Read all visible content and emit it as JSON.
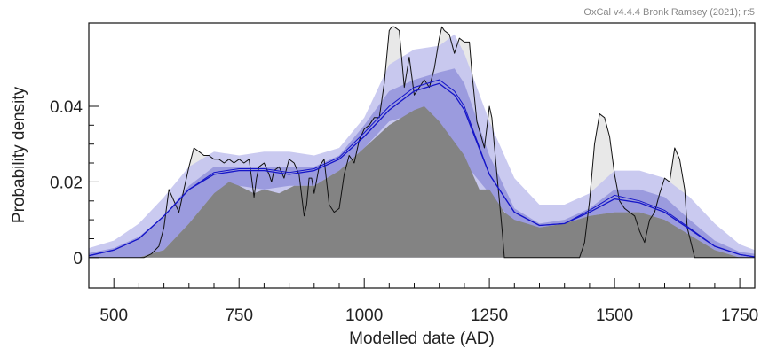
{
  "chart_data": {
    "type": "area",
    "credit": "OxCal v4.4.4 Bronk Ramsey (2021); r:5",
    "xlabel": "Modelled date (AD)",
    "ylabel": "Probability density",
    "xlim": [
      450,
      1780
    ],
    "ylim": [
      -0.008,
      0.062
    ],
    "x_ticks": [
      500,
      750,
      1000,
      1250,
      1500,
      1750
    ],
    "x_minor_step": 50,
    "y_ticks": [
      {
        "value": 0,
        "label": "0"
      },
      {
        "value": 0.02,
        "label": "0.02"
      },
      {
        "value": 0.04,
        "label": "0.04"
      }
    ],
    "y_minor_step": 0.005,
    "colors": {
      "envelope_outer": "#c4c4ee",
      "envelope_inner": "#9696dc",
      "model_fill": "#838383",
      "raw_fill": "#e8e8e8",
      "raw_line": "#111111",
      "mean_line": "#1515c8",
      "axis": "#111111"
    },
    "series": [
      {
        "role": "raw-kde",
        "x": [
          450,
          540,
          560,
          575,
          590,
          600,
          610,
          620,
          630,
          640,
          650,
          660,
          670,
          680,
          690,
          700,
          710,
          720,
          730,
          740,
          750,
          760,
          770,
          775,
          780,
          785,
          790,
          800,
          810,
          815,
          820,
          830,
          840,
          850,
          860,
          870,
          880,
          885,
          890,
          895,
          900,
          910,
          920,
          930,
          940,
          950,
          960,
          970,
          980,
          990,
          1000,
          1010,
          1020,
          1030,
          1040,
          1050,
          1055,
          1060,
          1070,
          1080,
          1090,
          1100,
          1110,
          1120,
          1130,
          1140,
          1150,
          1155,
          1160,
          1170,
          1180,
          1190,
          1200,
          1210,
          1215,
          1225,
          1240,
          1250,
          1255,
          1265,
          1275,
          1280,
          1290,
          1300,
          1400,
          1430,
          1440,
          1450,
          1460,
          1470,
          1480,
          1490,
          1500,
          1510,
          1520,
          1530,
          1540,
          1550,
          1560,
          1570,
          1580,
          1590,
          1600,
          1610,
          1620,
          1630,
          1640,
          1645,
          1660,
          1780
        ],
        "y": [
          0,
          0,
          0,
          0.001,
          0.003,
          0.008,
          0.018,
          0.015,
          0.012,
          0.018,
          0.024,
          0.029,
          0.028,
          0.027,
          0.027,
          0.026,
          0.026,
          0.025,
          0.026,
          0.025,
          0.026,
          0.025,
          0.026,
          0.021,
          0.016,
          0.021,
          0.024,
          0.025,
          0.022,
          0.02,
          0.023,
          0.024,
          0.021,
          0.026,
          0.025,
          0.022,
          0.011,
          0.014,
          0.021,
          0.021,
          0.017,
          0.024,
          0.026,
          0.014,
          0.012,
          0.013,
          0.022,
          0.027,
          0.025,
          0.031,
          0.034,
          0.035,
          0.037,
          0.037,
          0.046,
          0.06,
          0.061,
          0.061,
          0.06,
          0.045,
          0.053,
          0.043,
          0.045,
          0.047,
          0.045,
          0.05,
          0.058,
          0.061,
          0.06,
          0.059,
          0.054,
          0.058,
          0.057,
          0.057,
          0.049,
          0.036,
          0.029,
          0.04,
          0.037,
          0.022,
          0.008,
          0,
          0,
          0,
          0,
          0,
          0.004,
          0.015,
          0.03,
          0.038,
          0.037,
          0.032,
          0.022,
          0.015,
          0.013,
          0.012,
          0.011,
          0.007,
          0.004,
          0.01,
          0.012,
          0.017,
          0.021,
          0.02,
          0.029,
          0.026,
          0.018,
          0.008,
          0,
          0
        ]
      },
      {
        "role": "envelope-outer",
        "x": [
          450,
          500,
          550,
          600,
          650,
          700,
          750,
          800,
          850,
          900,
          950,
          1000,
          1050,
          1100,
          1150,
          1180,
          1200,
          1250,
          1300,
          1350,
          1400,
          1450,
          1500,
          1550,
          1600,
          1650,
          1700,
          1750,
          1780
        ],
        "upper": [
          0.0025,
          0.0045,
          0.009,
          0.016,
          0.024,
          0.028,
          0.027,
          0.028,
          0.028,
          0.027,
          0.029,
          0.037,
          0.051,
          0.055,
          0.056,
          0.059,
          0.054,
          0.036,
          0.021,
          0.014,
          0.014,
          0.017,
          0.023,
          0.023,
          0.021,
          0.016,
          0.009,
          0.0035,
          0.002
        ],
        "lower": [
          0,
          0,
          0,
          0,
          0,
          0,
          0,
          0,
          0,
          0,
          0,
          0,
          0,
          0,
          0,
          0,
          0,
          0,
          0,
          0,
          0,
          0,
          0,
          0,
          0,
          0,
          0,
          0,
          0
        ]
      },
      {
        "role": "envelope-inner",
        "x": [
          450,
          500,
          550,
          600,
          650,
          700,
          750,
          800,
          850,
          900,
          950,
          1000,
          1050,
          1100,
          1150,
          1180,
          1200,
          1250,
          1300,
          1350,
          1400,
          1450,
          1500,
          1550,
          1600,
          1650,
          1700,
          1750,
          1780
        ],
        "upper": [
          0.0012,
          0.0025,
          0.0055,
          0.011,
          0.019,
          0.024,
          0.024,
          0.024,
          0.024,
          0.024,
          0.027,
          0.035,
          0.044,
          0.047,
          0.049,
          0.05,
          0.046,
          0.027,
          0.013,
          0.009,
          0.01,
          0.013,
          0.018,
          0.018,
          0.016,
          0.01,
          0.0045,
          0.0015,
          0.001
        ],
        "lower": [
          0,
          0,
          0,
          0.002,
          0.009,
          0.017,
          0.019,
          0.018,
          0.019,
          0.019,
          0.023,
          0.029,
          0.036,
          0.038,
          0.035,
          0.03,
          0.025,
          0.017,
          0.009,
          0.008,
          0.009,
          0.011,
          0.012,
          0.012,
          0.01,
          0.006,
          0.002,
          0,
          0
        ]
      },
      {
        "role": "model-fill",
        "x": [
          450,
          500,
          550,
          600,
          650,
          700,
          730,
          750,
          780,
          800,
          830,
          860,
          900,
          950,
          1000,
          1050,
          1100,
          1120,
          1150,
          1200,
          1230,
          1250,
          1280,
          1300,
          1350,
          1400,
          1450,
          1500,
          1550,
          1600,
          1650,
          1700,
          1750,
          1780
        ],
        "y": [
          0,
          0,
          0,
          0.002,
          0.009,
          0.017,
          0.02,
          0.019,
          0.017,
          0.018,
          0.017,
          0.019,
          0.019,
          0.023,
          0.029,
          0.035,
          0.039,
          0.04,
          0.036,
          0.027,
          0.018,
          0.018,
          0.012,
          0.01,
          0.008,
          0.009,
          0.011,
          0.012,
          0.012,
          0.01,
          0.006,
          0.002,
          0,
          0
        ]
      },
      {
        "role": "mean-line-a",
        "x": [
          450,
          500,
          550,
          600,
          650,
          700,
          750,
          800,
          850,
          900,
          950,
          1000,
          1050,
          1100,
          1150,
          1180,
          1200,
          1250,
          1300,
          1350,
          1400,
          1450,
          1500,
          1550,
          1600,
          1650,
          1700,
          1750,
          1780
        ],
        "y": [
          0.0005,
          0.002,
          0.005,
          0.011,
          0.018,
          0.022,
          0.023,
          0.023,
          0.022,
          0.023,
          0.026,
          0.032,
          0.039,
          0.044,
          0.046,
          0.043,
          0.039,
          0.022,
          0.012,
          0.0085,
          0.009,
          0.012,
          0.0155,
          0.0145,
          0.012,
          0.0075,
          0.003,
          0.0008,
          0.0002
        ]
      },
      {
        "role": "mean-line-b",
        "x": [
          450,
          500,
          550,
          600,
          650,
          700,
          750,
          800,
          850,
          900,
          950,
          1000,
          1050,
          1100,
          1150,
          1180,
          1200,
          1250,
          1300,
          1350,
          1400,
          1450,
          1500,
          1550,
          1600,
          1650,
          1700,
          1750,
          1780
        ],
        "y": [
          0.0005,
          0.002,
          0.005,
          0.011,
          0.018,
          0.0225,
          0.0235,
          0.0235,
          0.0225,
          0.0235,
          0.0265,
          0.033,
          0.04,
          0.045,
          0.047,
          0.044,
          0.04,
          0.022,
          0.012,
          0.0085,
          0.009,
          0.0125,
          0.0165,
          0.015,
          0.0125,
          0.0078,
          0.003,
          0.0008,
          0.0002
        ]
      }
    ]
  }
}
